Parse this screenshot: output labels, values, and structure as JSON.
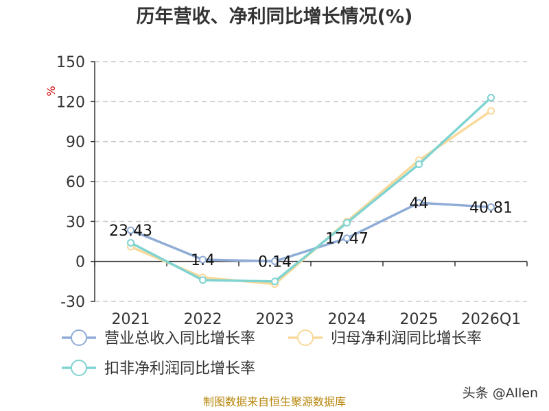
{
  "chart_data": {
    "type": "line",
    "title": "历年营收、净利同比增长情况(%)",
    "ylabel": "%",
    "categories": [
      "2021",
      "2022",
      "2023",
      "2024",
      "2025",
      "2026Q1"
    ],
    "y_ticks": [
      150,
      120,
      90,
      60,
      30,
      0,
      -30
    ],
    "ylim": [
      -30,
      150
    ],
    "grid": true,
    "legend_position": "bottom-left",
    "series": [
      {
        "name": "营业总收入同比增长率",
        "color": "#8FACD6",
        "values": [
          23.43,
          1.4,
          0.14,
          17.47,
          44,
          40.81
        ],
        "labels": [
          "23.43",
          "1.4",
          "0.14",
          "17.47",
          "44",
          "40.81"
        ]
      },
      {
        "name": "归母净利润同比增长率",
        "color": "#F9D99A",
        "values": [
          11,
          -12,
          -17,
          30,
          76,
          113
        ]
      },
      {
        "name": "扣非净利润同比增长率",
        "color": "#7FD3D1",
        "values": [
          14,
          -14,
          -15,
          29,
          73,
          123
        ]
      }
    ]
  },
  "footer": {
    "source": "制图数据来自恒生聚源数据库",
    "watermark": "头条 @Allen"
  }
}
